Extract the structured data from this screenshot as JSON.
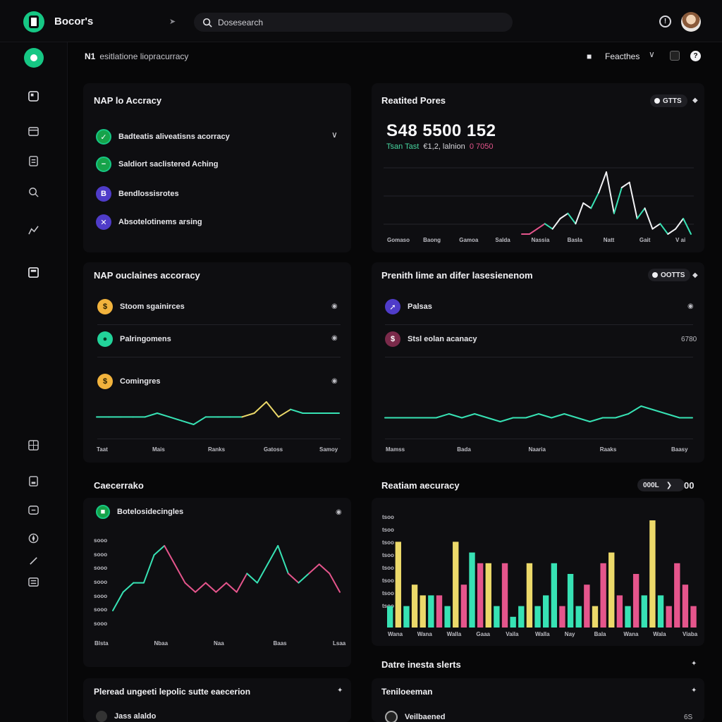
{
  "header": {
    "app_title": "Bocor's",
    "search_placeholder": "Dosesearch",
    "info_icon": "info-icon"
  },
  "breadcrumb": {
    "prefix": "N1",
    "text": "esitlatione liopracurracy"
  },
  "user_menu": {
    "label": "Feacthes",
    "help": "?"
  },
  "panel1": {
    "title": "NAP lo Accracy",
    "items": [
      {
        "label": "Badteatis aliveatisns acorracy",
        "icon": "check-circle-icon"
      },
      {
        "label": "Saldiort saclistered Aching",
        "icon": "minus-circle-icon"
      },
      {
        "label": "Bendlossisrotes",
        "icon": "b-icon"
      },
      {
        "label": "Absotelotinems arsing",
        "icon": "x-icon"
      }
    ]
  },
  "panel2": {
    "title": "Reatited Pores",
    "badge": "GTTS",
    "big_number": "S48 5500 152",
    "sub_green": "Tsan Tast",
    "sub_mid": "€1,2, lalnion",
    "sub_pink": "0 7050",
    "x_labels": [
      "Gomaso",
      "Baong",
      "Gamoa",
      "Salda",
      "Nassia",
      "Basla",
      "Natt",
      "Gait",
      "V ai"
    ]
  },
  "panel3": {
    "title": "NAP ouclaines accoracy",
    "items": [
      {
        "label": "Stoom sgainirces",
        "icon": "coin-icon"
      },
      {
        "label": "Palringomens",
        "icon": "leaf-icon"
      },
      {
        "label": "Comingres",
        "icon": "coin-icon"
      }
    ],
    "x_labels": [
      "Taat",
      "Mais",
      "Ranks",
      "Gatoss",
      "Samoy"
    ]
  },
  "panel4": {
    "title": "Prenith lime an difer lasesienenom",
    "badge": "OOTTS",
    "items": [
      {
        "label": "Palsas",
        "icon": "compass-icon",
        "value": ""
      },
      {
        "label": "Stsl eolan acanacy",
        "icon": "dollar-icon",
        "value": "6780"
      }
    ],
    "x_labels": [
      "Mamss",
      "Bada",
      "Naaria",
      "Raaks",
      "Baasy"
    ]
  },
  "panel5": {
    "title": "Caecerrako",
    "legend": "Botelosidecingles",
    "y_labels": [
      "sooo",
      "sooo",
      "sooo",
      "sooo",
      "sooo",
      "sooo",
      "sooo"
    ],
    "x_labels": [
      "Blsta",
      "Nbaa",
      "Naa",
      "Baas",
      "Lsaa"
    ]
  },
  "panel6": {
    "title": "Reatiam aecuracy",
    "badge": "000L",
    "badge_extra": "00",
    "y_labels": [
      "tsoo",
      "tsoo",
      "tsoo",
      "tsoo",
      "tsoo",
      "tsoo",
      "tsoo",
      "tsoo"
    ],
    "x_labels": [
      "Wana",
      "Wana",
      "Walla",
      "Gaaa",
      "Vaila",
      "Walla",
      "Nay",
      "Bala",
      "Wana",
      "Wala",
      "Viaba"
    ]
  },
  "panel7": {
    "title": "Datre inesta slerts"
  },
  "panel8": {
    "title": "Pleread ungeeti lepolic sutte eaecerion",
    "row": "Jass alaldo"
  },
  "panel9": {
    "title": "Teniloeeman",
    "row": "Veilbaened",
    "value": "6S"
  },
  "colors": {
    "accent_green": "#16c784",
    "teal": "#37e2b4",
    "pink": "#e5558c",
    "yellow": "#ecd96a",
    "purple": "#4f3cc9"
  },
  "chart_data": [
    {
      "type": "line",
      "name": "Reatited Pores",
      "series": [
        {
          "values": [
            0,
            0,
            1,
            2,
            1,
            3,
            4,
            2,
            6,
            5,
            8,
            12,
            4,
            9,
            10,
            3,
            5,
            1,
            2,
            0,
            1,
            3,
            0
          ]
        }
      ]
    },
    {
      "type": "line",
      "name": "NAP ouclaines accoracy",
      "series": [
        {
          "values": [
            5,
            5,
            5,
            5,
            5,
            6,
            5,
            4,
            3,
            5,
            5,
            5,
            5,
            6,
            9,
            5,
            7,
            6,
            6,
            6,
            6
          ]
        }
      ]
    },
    {
      "type": "line",
      "name": "Prenith lime",
      "series": [
        {
          "values": [
            5,
            5,
            5,
            5,
            5,
            6,
            5,
            6,
            5,
            4,
            5,
            5,
            6,
            5,
            6,
            5,
            4,
            5,
            5,
            6,
            8,
            7,
            6,
            5,
            5
          ]
        }
      ]
    },
    {
      "type": "line",
      "name": "Caecerrako",
      "series": [
        {
          "values": [
            1,
            3,
            4,
            4,
            7,
            8,
            6,
            4,
            3,
            4,
            3,
            4,
            3,
            5,
            4,
            6,
            8,
            5,
            4,
            5,
            6,
            5,
            3
          ]
        }
      ]
    },
    {
      "type": "bar",
      "name": "Reatiam aecuracy",
      "values": [
        2,
        8,
        2,
        4,
        3,
        3,
        3,
        2,
        8,
        4,
        7,
        6,
        6,
        2,
        6,
        1,
        2,
        6,
        2,
        3,
        6,
        2,
        5,
        2,
        4,
        2,
        6,
        7,
        3,
        2,
        5,
        3,
        10,
        3,
        2,
        6,
        4,
        2
      ],
      "colors": [
        "#37e2b4",
        "#ecd96a",
        "#37e2b4",
        "#ecd96a",
        "#ecd96a",
        "#37e2b4",
        "#e5558c",
        "#37e2b4",
        "#ecd96a",
        "#e5558c",
        "#37e2b4",
        "#e5558c",
        "#ecd96a",
        "#37e2b4",
        "#e5558c",
        "#37e2b4",
        "#37e2b4",
        "#ecd96a",
        "#37e2b4",
        "#37e2b4",
        "#37e2b4",
        "#e5558c",
        "#37e2b4",
        "#37e2b4",
        "#e5558c",
        "#ecd96a",
        "#e5558c",
        "#ecd96a",
        "#e5558c",
        "#37e2b4",
        "#e5558c",
        "#37e2b4",
        "#ecd96a",
        "#37e2b4",
        "#e5558c",
        "#e5558c",
        "#e5558c",
        "#e5558c"
      ]
    }
  ]
}
